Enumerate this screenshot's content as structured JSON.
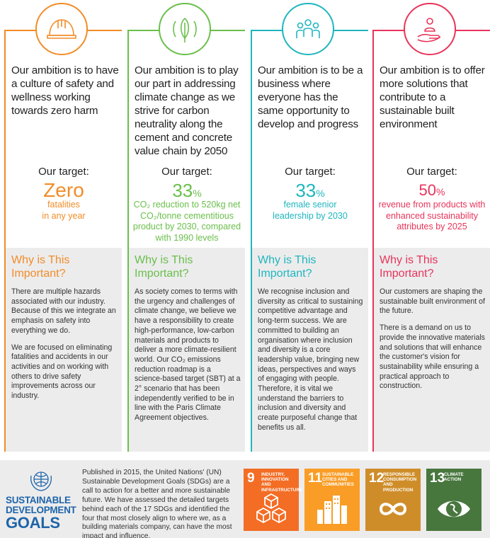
{
  "columns": [
    {
      "ambition": "Our ambition is to have a culture of safety and wellness working towards zero harm",
      "target_label": "Our target:",
      "target_big": "Zero",
      "target_unit": "",
      "target_desc": "fatalities\nin any year",
      "why_title": "Why is This Important?",
      "why_paragraphs": [
        "There are multiple hazards associated with our industry. Because of this we integrate an emphasis on safety into everything we do.",
        "We are focused on eliminating fatalities and accidents in our activities and on working with others to drive safety improvements across our industry."
      ],
      "icon": "hard-hat-icon",
      "color": "#f28c28"
    },
    {
      "ambition": "Our ambition is to play our part in addressing climate change as we strive for carbon neutrality along the cement and concrete value chain by 2050",
      "target_label": "Our target:",
      "target_big": "33",
      "target_unit": "%",
      "target_desc": "CO₂ reduction to 520kg net CO₂/tonne cementitious product by 2030, compared with 1990 levels",
      "why_title": "Why is This Important?",
      "why_paragraphs": [
        "As society comes to terms with the urgency and challenges of climate change, we believe we have a responsibility to create high-performance, low-carbon materials and products to deliver a more climate-resilient world. Our CO₂ emissions reduction roadmap is a science-based target (SBT) at a 2° scenario that has been independently verified to be in line with the Paris Climate Agreement objectives."
      ],
      "icon": "leaf-icon",
      "color": "#6abf4b"
    },
    {
      "ambition": "Our ambition is to be a business where everyone has the same opportunity to develop and progress",
      "target_label": "Our target:",
      "target_big": "33",
      "target_unit": "%",
      "target_desc": "female senior\nleadership by 2030",
      "why_title": "Why is This Important?",
      "why_paragraphs": [
        "We recognise inclusion and diversity as critical to sustaining competitive advantage and long-term success. We are committed to building an organisation where inclusion and diversity is a core leadership value, bringing new ideas, perspectives and ways of engaging with people. Therefore, it is vital we understand the barriers to inclusion and diversity and create purposeful change that benefits us all."
      ],
      "icon": "people-icon",
      "color": "#1fb6be"
    },
    {
      "ambition": "Our ambition is to offer more solutions that contribute to a sustainable built environment",
      "target_label": "Our target:",
      "target_big": "50",
      "target_unit": "%",
      "target_desc": "revenue from products with enhanced sustainability attributes by 2025",
      "why_title": "Why is This Important?",
      "why_paragraphs": [
        "Our customers are shaping the sustainable built environment of the future.",
        "There is a demand on us to provide the innovative materials and solutions that will enhance the customer's vision for sustainability while ensuring a practical approach to construction."
      ],
      "icon": "hand-person-icon",
      "color": "#e8345a"
    }
  ],
  "sdg": {
    "logo_line1": "SUSTAINABLE",
    "logo_line2": "DEVELOPMENT",
    "logo_line3": "GOALS",
    "text": "Published in 2015, the United Nations' (UN) Sustainable Development Goals (SDGs) are a call to action for a better and more sustainable future. We have assessed the detailed targets behind each of the 17 SDGs and identified the four that most closely align to where we, as a building materials company, can have the most impact and influence.",
    "tiles": [
      {
        "num": "9",
        "label": "Industry, innovation and infrastructure",
        "icon": "cubes-icon",
        "color": "#f36d25"
      },
      {
        "num": "11",
        "label": "Sustainable cities and communities",
        "icon": "city-icon",
        "color": "#f99d26"
      },
      {
        "num": "12",
        "label": "Responsible consumption and production",
        "icon": "infinity-icon",
        "color": "#cf8d2a"
      },
      {
        "num": "13",
        "label": "Climate action",
        "icon": "eye-globe-icon",
        "color": "#48773e"
      }
    ]
  }
}
